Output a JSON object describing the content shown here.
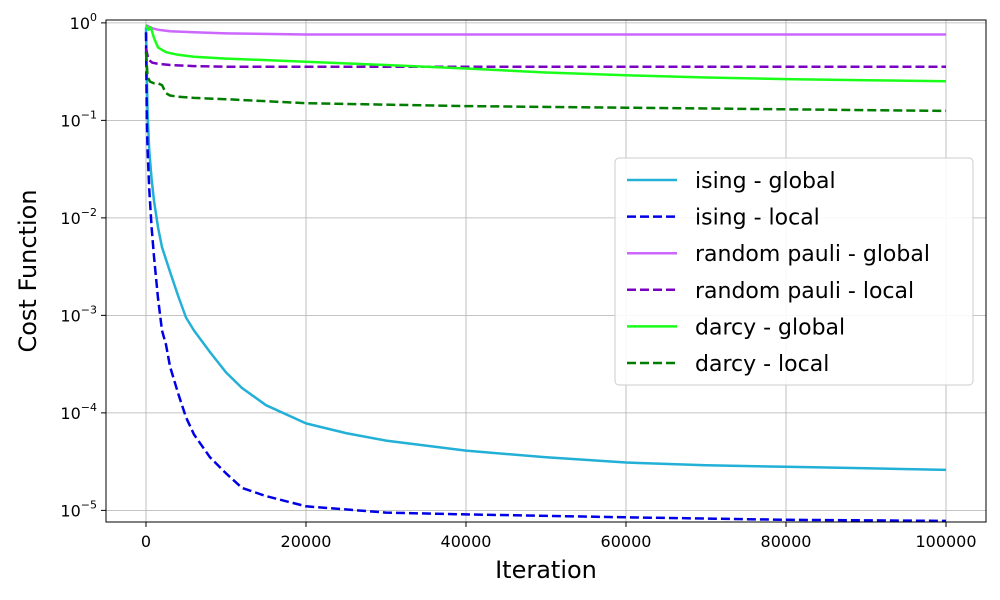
{
  "chart_data": {
    "type": "line",
    "title": "",
    "xlabel": "Iteration",
    "ylabel": "Cost Function",
    "xlim": [
      -5000,
      105000
    ],
    "ylim": [
      7.6e-06,
      1.07
    ],
    "yscale": "log",
    "grid": true,
    "legend_position": "right",
    "x_ticks": [
      {
        "value": 0,
        "label": "0"
      },
      {
        "value": 20000,
        "label": "20000"
      },
      {
        "value": 40000,
        "label": "40000"
      },
      {
        "value": 60000,
        "label": "60000"
      },
      {
        "value": 80000,
        "label": "80000"
      },
      {
        "value": 100000,
        "label": "100000"
      }
    ],
    "y_ticks": [
      {
        "value": 1e-05,
        "label": "10",
        "exp": "−5"
      },
      {
        "value": 0.0001,
        "label": "10",
        "exp": "−4"
      },
      {
        "value": 0.001,
        "label": "10",
        "exp": "−3"
      },
      {
        "value": 0.01,
        "label": "10",
        "exp": "−2"
      },
      {
        "value": 0.1,
        "label": "10",
        "exp": "−1"
      },
      {
        "value": 1,
        "label": "10",
        "exp": "0"
      }
    ],
    "series": [
      {
        "name": "ising - global",
        "color": "#22b0d6",
        "dash": "solid",
        "x": [
          0,
          100,
          200,
          400,
          700,
          1000,
          1500,
          2000,
          3000,
          4000,
          5000,
          6000,
          8000,
          10000,
          12000,
          15000,
          20000,
          25000,
          30000,
          40000,
          50000,
          60000,
          70000,
          80000,
          90000,
          100000
        ],
        "y": [
          0.9,
          0.3,
          0.12,
          0.05,
          0.025,
          0.015,
          0.008,
          0.005,
          0.0028,
          0.0016,
          0.00095,
          0.0007,
          0.00042,
          0.00026,
          0.00018,
          0.00012,
          7.8e-05,
          6.2e-05,
          5.2e-05,
          4.1e-05,
          3.5e-05,
          3.1e-05,
          2.9e-05,
          2.8e-05,
          2.7e-05,
          2.6e-05
        ]
      },
      {
        "name": "ising - local",
        "color": "#0000e6",
        "dash": "dashed",
        "x": [
          0,
          100,
          200,
          400,
          700,
          1000,
          1500,
          2000,
          2500,
          3000,
          4000,
          5000,
          6000,
          8000,
          10000,
          12000,
          15000,
          20000,
          30000,
          40000,
          60000,
          80000,
          100000
        ],
        "y": [
          0.8,
          0.1,
          0.05,
          0.02,
          0.008,
          0.004,
          0.0015,
          0.0007,
          0.0005,
          0.0003,
          0.00016,
          9e-05,
          6e-05,
          3.5e-05,
          2.4e-05,
          1.7e-05,
          1.4e-05,
          1.1e-05,
          9.5e-06,
          9.1e-06,
          8.5e-06,
          8e-06,
          7.8e-06
        ]
      },
      {
        "name": "random pauli - global",
        "color": "#cc66ff",
        "dash": "solid",
        "x": [
          0,
          300,
          800,
          1500,
          3000,
          6000,
          10000,
          20000,
          40000,
          60000,
          80000,
          100000
        ],
        "y": [
          0.95,
          0.92,
          0.88,
          0.85,
          0.82,
          0.8,
          0.78,
          0.76,
          0.76,
          0.76,
          0.76,
          0.76
        ]
      },
      {
        "name": "random pauli - local",
        "color": "#7a00c2",
        "dash": "dashed",
        "x": [
          0,
          300,
          800,
          1500,
          3000,
          6000,
          10000,
          20000,
          40000,
          60000,
          80000,
          100000
        ],
        "y": [
          0.55,
          0.42,
          0.39,
          0.38,
          0.37,
          0.36,
          0.355,
          0.355,
          0.355,
          0.355,
          0.355,
          0.355
        ]
      },
      {
        "name": "darcy - global",
        "color": "#1aff1a",
        "dash": "solid",
        "x": [
          0,
          300,
          600,
          1000,
          1500,
          2500,
          4000,
          6000,
          10000,
          20000,
          30000,
          40000,
          50000,
          60000,
          70000,
          80000,
          90000,
          100000
        ],
        "y": [
          0.95,
          0.85,
          0.9,
          0.7,
          0.56,
          0.5,
          0.47,
          0.45,
          0.43,
          0.4,
          0.37,
          0.34,
          0.31,
          0.29,
          0.275,
          0.265,
          0.258,
          0.252
        ]
      },
      {
        "name": "darcy - local",
        "color": "#007d00",
        "dash": "dashed",
        "x": [
          0,
          200,
          500,
          1000,
          1500,
          2000,
          2500,
          3000,
          4000,
          6000,
          10000,
          20000,
          40000,
          60000,
          80000,
          100000
        ],
        "y": [
          0.5,
          0.28,
          0.25,
          0.24,
          0.24,
          0.23,
          0.19,
          0.18,
          0.175,
          0.17,
          0.165,
          0.15,
          0.14,
          0.135,
          0.13,
          0.125
        ]
      }
    ]
  }
}
